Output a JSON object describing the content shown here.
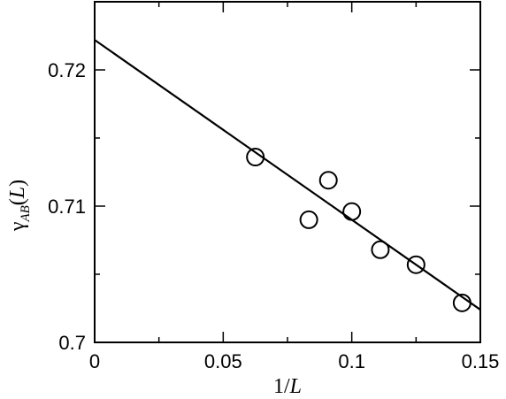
{
  "chart_data": {
    "type": "scatter",
    "title": "",
    "xlabel": "1/L",
    "ylabel": "γAB(L)",
    "xlim": [
      0,
      0.15
    ],
    "ylim": [
      0.7,
      0.725
    ],
    "x_ticks": [
      0,
      0.05,
      0.1,
      0.15
    ],
    "x_tick_labels": [
      "0",
      "0.05",
      "0.1",
      "0.15"
    ],
    "y_ticks": [
      0.7,
      0.71,
      0.72
    ],
    "y_tick_labels": [
      "0.7",
      "0.71",
      "0.72"
    ],
    "x_minor_ticks": [
      0.025,
      0.075,
      0.125
    ],
    "y_minor_ticks": [
      0.705,
      0.715
    ],
    "grid": false,
    "points": [
      {
        "x": 0.0625,
        "y": 0.7136
      },
      {
        "x": 0.0833,
        "y": 0.709
      },
      {
        "x": 0.0909,
        "y": 0.7119
      },
      {
        "x": 0.1,
        "y": 0.7096
      },
      {
        "x": 0.1111,
        "y": 0.7068
      },
      {
        "x": 0.125,
        "y": 0.7057
      },
      {
        "x": 0.1429,
        "y": 0.7029
      }
    ],
    "fit_line": {
      "x": [
        0,
        0.15
      ],
      "y": [
        0.7222,
        0.7024
      ]
    },
    "marker": "open-circle",
    "colors": {
      "marker": "#000000",
      "line": "#000000",
      "axes": "#000000"
    }
  }
}
